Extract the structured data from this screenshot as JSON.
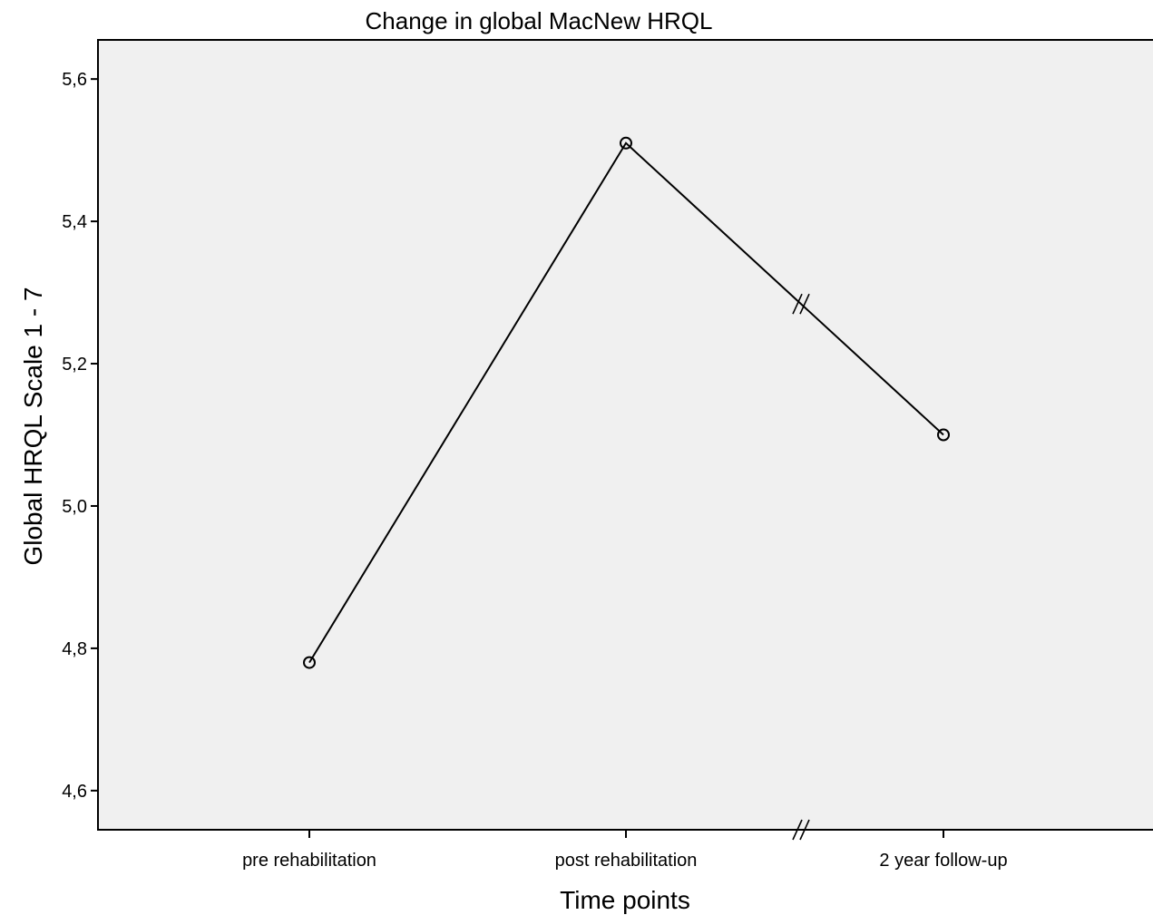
{
  "chart_data": {
    "type": "line",
    "title": "Change in global MacNew HRQL",
    "xlabel": "Time points",
    "ylabel": "Global HRQL Scale 1 - 7",
    "categories": [
      "pre rehabilitation",
      "post rehabilitation",
      "2 year follow-up"
    ],
    "series": [
      {
        "values": [
          4.78,
          5.51,
          5.1
        ]
      }
    ],
    "ylim": [
      4.545,
      5.655
    ],
    "yticks": [
      "4,6",
      "4,8",
      "5,0",
      "5,2",
      "5,4",
      "5,6"
    ],
    "ytick_values": [
      4.6,
      4.8,
      5.0,
      5.2,
      5.4,
      5.6
    ],
    "axis_break": "between post rehabilitation and 2 year follow-up",
    "grid": false,
    "legend": "none",
    "colors": {
      "line": "#000000",
      "plot_background": "#f0f0f0"
    }
  }
}
